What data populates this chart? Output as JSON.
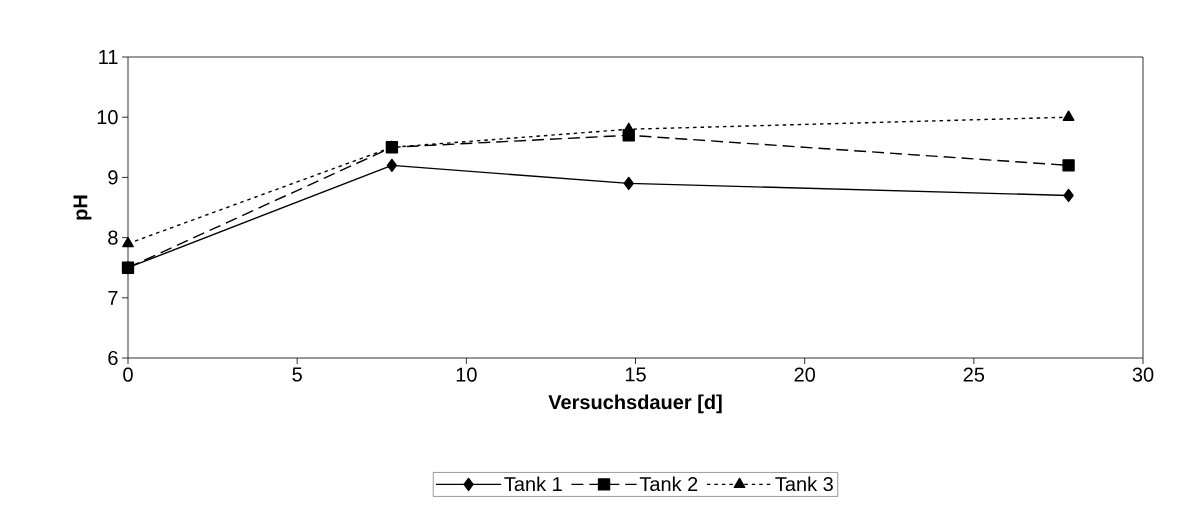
{
  "chart_data": {
    "type": "line",
    "xlabel": "Versuchsdauer [d]",
    "ylabel": "pH",
    "x": [
      0,
      7.8,
      14.8,
      27.8
    ],
    "series": [
      {
        "name": "Tank 1",
        "color": "#000000",
        "marker": "diamond",
        "line_style": "solid",
        "values": [
          7.5,
          9.2,
          8.9,
          8.7
        ]
      },
      {
        "name": "Tank 2",
        "color": "#000000",
        "marker": "square",
        "line_style": "dashed",
        "values": [
          7.5,
          9.5,
          9.7,
          9.2
        ]
      },
      {
        "name": "Tank 3",
        "color": "#000000",
        "marker": "triangle",
        "line_style": "dotted",
        "values": [
          7.9,
          9.5,
          9.8,
          10.0
        ]
      }
    ],
    "xlim": [
      0,
      30
    ],
    "xticks": [
      0,
      5,
      10,
      15,
      20,
      25,
      30
    ],
    "ylim": [
      6,
      11
    ],
    "yticks": [
      6,
      7,
      8,
      9,
      10,
      11
    ],
    "grid": false,
    "legend": "bottom"
  }
}
